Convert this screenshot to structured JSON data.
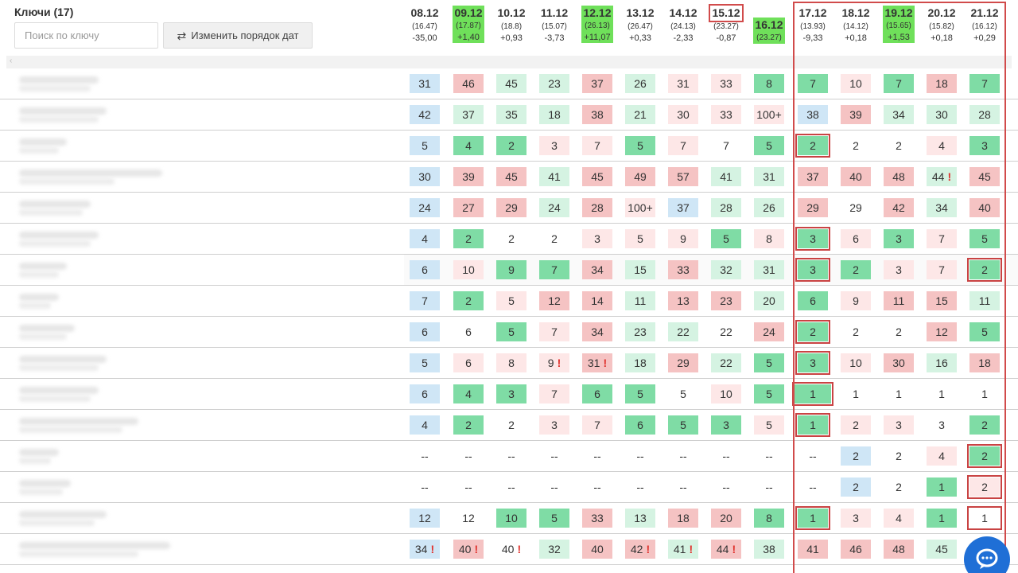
{
  "header": {
    "title": "Ключи (17)",
    "search_placeholder": "Поиск по ключу",
    "order_button_label": "Изменить порядок дат"
  },
  "columns": [
    {
      "date": "08.12",
      "avg": "(16.47)",
      "delta": "-35,00",
      "style": "plain"
    },
    {
      "date": "09.12",
      "avg": "(17.87)",
      "delta": "+1,40",
      "style": "hl"
    },
    {
      "date": "10.12",
      "avg": "(18.8)",
      "delta": "+0,93",
      "style": "plain"
    },
    {
      "date": "11.12",
      "avg": "(15.07)",
      "delta": "-3,73",
      "style": "plain"
    },
    {
      "date": "12.12",
      "avg": "(26.13)",
      "delta": "+11,07",
      "style": "hl"
    },
    {
      "date": "13.12",
      "avg": "(26.47)",
      "delta": "+0,33",
      "style": "plain"
    },
    {
      "date": "14.12",
      "avg": "(24.13)",
      "delta": "-2,33",
      "style": "plain"
    },
    {
      "date": "15.12",
      "avg": "(23.27)",
      "delta": "-0,87",
      "style": "boxed"
    },
    {
      "date": "16.12",
      "avg": "(23.27)",
      "delta": "",
      "style": "solo"
    },
    {
      "date": "17.12",
      "avg": "(13.93)",
      "delta": "-9,33",
      "style": "plain"
    },
    {
      "date": "18.12",
      "avg": "(14.12)",
      "delta": "+0,18",
      "style": "plain"
    },
    {
      "date": "19.12",
      "avg": "(15.65)",
      "delta": "+1,53",
      "style": "hl"
    },
    {
      "date": "20.12",
      "avg": "(15.82)",
      "delta": "+0,18",
      "style": "plain"
    },
    {
      "date": "21.12",
      "avg": "(16.12)",
      "delta": "+0,29",
      "style": "plain"
    }
  ],
  "rows": [
    {
      "cells": [
        [
          "31",
          "b"
        ],
        [
          "46",
          "r"
        ],
        [
          "45",
          "lg"
        ],
        [
          "23",
          "lg"
        ],
        [
          "37",
          "r"
        ],
        [
          "26",
          "lg"
        ],
        [
          "31",
          "lr"
        ],
        [
          "33",
          "lr"
        ],
        [
          "8",
          "g"
        ],
        [
          "7",
          "g"
        ],
        [
          "10",
          "lr"
        ],
        [
          "7",
          "g"
        ],
        [
          "18",
          "r"
        ],
        [
          "7",
          "g"
        ]
      ]
    },
    {
      "cells": [
        [
          "42",
          "b"
        ],
        [
          "37",
          "lg"
        ],
        [
          "35",
          "lg"
        ],
        [
          "18",
          "lg"
        ],
        [
          "38",
          "r"
        ],
        [
          "21",
          "lg"
        ],
        [
          "30",
          "lr"
        ],
        [
          "33",
          "lr"
        ],
        [
          "100+",
          "lr"
        ],
        [
          "38",
          "b"
        ],
        [
          "39",
          "r"
        ],
        [
          "34",
          "lg"
        ],
        [
          "30",
          "lg"
        ],
        [
          "28",
          "lg"
        ]
      ]
    },
    {
      "cells": [
        [
          "5",
          "b"
        ],
        [
          "4",
          "g"
        ],
        [
          "2",
          "g"
        ],
        [
          "3",
          "lr"
        ],
        [
          "7",
          "lr"
        ],
        [
          "5",
          "g"
        ],
        [
          "7",
          "lr"
        ],
        [
          "7",
          ""
        ],
        [
          "5",
          "g"
        ],
        [
          "2",
          "g box"
        ],
        [
          "2",
          ""
        ],
        [
          "2",
          ""
        ],
        [
          "4",
          "lr"
        ],
        [
          "3",
          "g"
        ]
      ]
    },
    {
      "cells": [
        [
          "30",
          "b"
        ],
        [
          "39",
          "r"
        ],
        [
          "45",
          "r"
        ],
        [
          "41",
          "lg"
        ],
        [
          "45",
          "r"
        ],
        [
          "49",
          "r"
        ],
        [
          "57",
          "r"
        ],
        [
          "41",
          "lg"
        ],
        [
          "31",
          "lg"
        ],
        [
          "37",
          "r"
        ],
        [
          "40",
          "r"
        ],
        [
          "48",
          "r"
        ],
        [
          "44!",
          "lg"
        ],
        [
          "45",
          "r"
        ]
      ]
    },
    {
      "cells": [
        [
          "24",
          "b"
        ],
        [
          "27",
          "r"
        ],
        [
          "29",
          "r"
        ],
        [
          "24",
          "lg"
        ],
        [
          "28",
          "r"
        ],
        [
          "100+",
          "lr"
        ],
        [
          "37",
          "b"
        ],
        [
          "28",
          "lg"
        ],
        [
          "26",
          "lg"
        ],
        [
          "29",
          "r"
        ],
        [
          "29",
          ""
        ],
        [
          "42",
          "r"
        ],
        [
          "34",
          "lg"
        ],
        [
          "40",
          "r"
        ]
      ]
    },
    {
      "cells": [
        [
          "4",
          "b"
        ],
        [
          "2",
          "g"
        ],
        [
          "2",
          ""
        ],
        [
          "2",
          ""
        ],
        [
          "3",
          "lr"
        ],
        [
          "5",
          "lr"
        ],
        [
          "9",
          "lr"
        ],
        [
          "5",
          "g"
        ],
        [
          "8",
          "lr"
        ],
        [
          "3",
          "g box"
        ],
        [
          "6",
          "lr"
        ],
        [
          "3",
          "g"
        ],
        [
          "7",
          "lr"
        ],
        [
          "5",
          "g"
        ]
      ]
    },
    {
      "cells": [
        [
          "6",
          "b"
        ],
        [
          "10",
          "lr"
        ],
        [
          "9",
          "g"
        ],
        [
          "7",
          "g"
        ],
        [
          "34",
          "r"
        ],
        [
          "15",
          "lg"
        ],
        [
          "33",
          "r"
        ],
        [
          "32",
          "lg"
        ],
        [
          "31",
          "lg"
        ],
        [
          "3",
          "g box"
        ],
        [
          "2",
          "g"
        ],
        [
          "3",
          "lr"
        ],
        [
          "7",
          "lr"
        ],
        [
          "2",
          "g box"
        ]
      ]
    },
    {
      "cells": [
        [
          "7",
          "b"
        ],
        [
          "2",
          "g"
        ],
        [
          "5",
          "lr"
        ],
        [
          "12",
          "r"
        ],
        [
          "14",
          "r"
        ],
        [
          "11",
          "lg"
        ],
        [
          "13",
          "r"
        ],
        [
          "23",
          "r"
        ],
        [
          "20",
          "lg"
        ],
        [
          "6",
          "g"
        ],
        [
          "9",
          "lr"
        ],
        [
          "11",
          "r"
        ],
        [
          "15",
          "r"
        ],
        [
          "11",
          "lg"
        ]
      ]
    },
    {
      "cells": [
        [
          "6",
          "b"
        ],
        [
          "6",
          ""
        ],
        [
          "5",
          "g"
        ],
        [
          "7",
          "lr"
        ],
        [
          "34",
          "r"
        ],
        [
          "23",
          "lg"
        ],
        [
          "22",
          "lg"
        ],
        [
          "22",
          ""
        ],
        [
          "24",
          "r"
        ],
        [
          "2",
          "g box"
        ],
        [
          "2",
          ""
        ],
        [
          "2",
          ""
        ],
        [
          "12",
          "r"
        ],
        [
          "5",
          "g"
        ]
      ]
    },
    {
      "cells": [
        [
          "5",
          "b"
        ],
        [
          "6",
          "lr"
        ],
        [
          "8",
          "lr"
        ],
        [
          "9!",
          "lr"
        ],
        [
          "31!",
          "r"
        ],
        [
          "18",
          "lg"
        ],
        [
          "29",
          "r"
        ],
        [
          "22",
          "lg"
        ],
        [
          "5",
          "g"
        ],
        [
          "3",
          "g box"
        ],
        [
          "10",
          "lr"
        ],
        [
          "30",
          "r"
        ],
        [
          "16",
          "lg"
        ],
        [
          "18",
          "r"
        ]
      ]
    },
    {
      "cells": [
        [
          "6",
          "b"
        ],
        [
          "4",
          "g"
        ],
        [
          "3",
          "g"
        ],
        [
          "7",
          "lr"
        ],
        [
          "6",
          "g"
        ],
        [
          "5",
          "g"
        ],
        [
          "5",
          ""
        ],
        [
          "10",
          "lr"
        ],
        [
          "5",
          "g"
        ],
        [
          "1",
          "g box wbox"
        ],
        [
          "1",
          ""
        ],
        [
          "1",
          ""
        ],
        [
          "1",
          ""
        ],
        [
          "1",
          ""
        ]
      ]
    },
    {
      "cells": [
        [
          "4",
          "b"
        ],
        [
          "2",
          "g"
        ],
        [
          "2",
          ""
        ],
        [
          "3",
          "lr"
        ],
        [
          "7",
          "lr"
        ],
        [
          "6",
          "g"
        ],
        [
          "5",
          "g"
        ],
        [
          "3",
          "g"
        ],
        [
          "5",
          "lr"
        ],
        [
          "1",
          "g box"
        ],
        [
          "2",
          "lr"
        ],
        [
          "3",
          "lr"
        ],
        [
          "3",
          ""
        ],
        [
          "2",
          "g"
        ]
      ]
    },
    {
      "cells": [
        [
          "--",
          ""
        ],
        [
          "--",
          ""
        ],
        [
          "--",
          ""
        ],
        [
          "--",
          ""
        ],
        [
          "--",
          ""
        ],
        [
          "--",
          ""
        ],
        [
          "--",
          ""
        ],
        [
          "--",
          ""
        ],
        [
          "--",
          ""
        ],
        [
          "--",
          ""
        ],
        [
          "2",
          "b"
        ],
        [
          "2",
          ""
        ],
        [
          "4",
          "lr"
        ],
        [
          "2",
          "g box"
        ]
      ]
    },
    {
      "cells": [
        [
          "--",
          ""
        ],
        [
          "--",
          ""
        ],
        [
          "--",
          ""
        ],
        [
          "--",
          ""
        ],
        [
          "--",
          ""
        ],
        [
          "--",
          ""
        ],
        [
          "--",
          ""
        ],
        [
          "--",
          ""
        ],
        [
          "--",
          ""
        ],
        [
          "--",
          ""
        ],
        [
          "2",
          "b"
        ],
        [
          "2",
          ""
        ],
        [
          "1",
          "g"
        ],
        [
          "2",
          "lr box"
        ]
      ]
    },
    {
      "cells": [
        [
          "12",
          "b"
        ],
        [
          "12",
          ""
        ],
        [
          "10",
          "g"
        ],
        [
          "5",
          "g"
        ],
        [
          "33",
          "r"
        ],
        [
          "13",
          "lg"
        ],
        [
          "18",
          "r"
        ],
        [
          "20",
          "r"
        ],
        [
          "8",
          "g"
        ],
        [
          "1",
          "g box"
        ],
        [
          "3",
          "lr"
        ],
        [
          "4",
          "lr"
        ],
        [
          "1",
          "g"
        ],
        [
          "1",
          " box"
        ]
      ]
    },
    {
      "cells": [
        [
          "34!",
          "b"
        ],
        [
          "40!",
          "r"
        ],
        [
          "40!",
          ""
        ],
        [
          "32",
          "lg"
        ],
        [
          "40",
          "r"
        ],
        [
          "42!",
          "r"
        ],
        [
          "41!",
          "lg"
        ],
        [
          "44!",
          "r"
        ],
        [
          "38",
          "lg"
        ],
        [
          "41",
          "r"
        ],
        [
          "46",
          "r"
        ],
        [
          "48",
          "r"
        ],
        [
          "45",
          "lg"
        ],
        [
          "",
          ""
        ]
      ]
    }
  ],
  "icons": {
    "order_button": "swap-arrows-icon",
    "chat": "chat-bubble-icon"
  }
}
